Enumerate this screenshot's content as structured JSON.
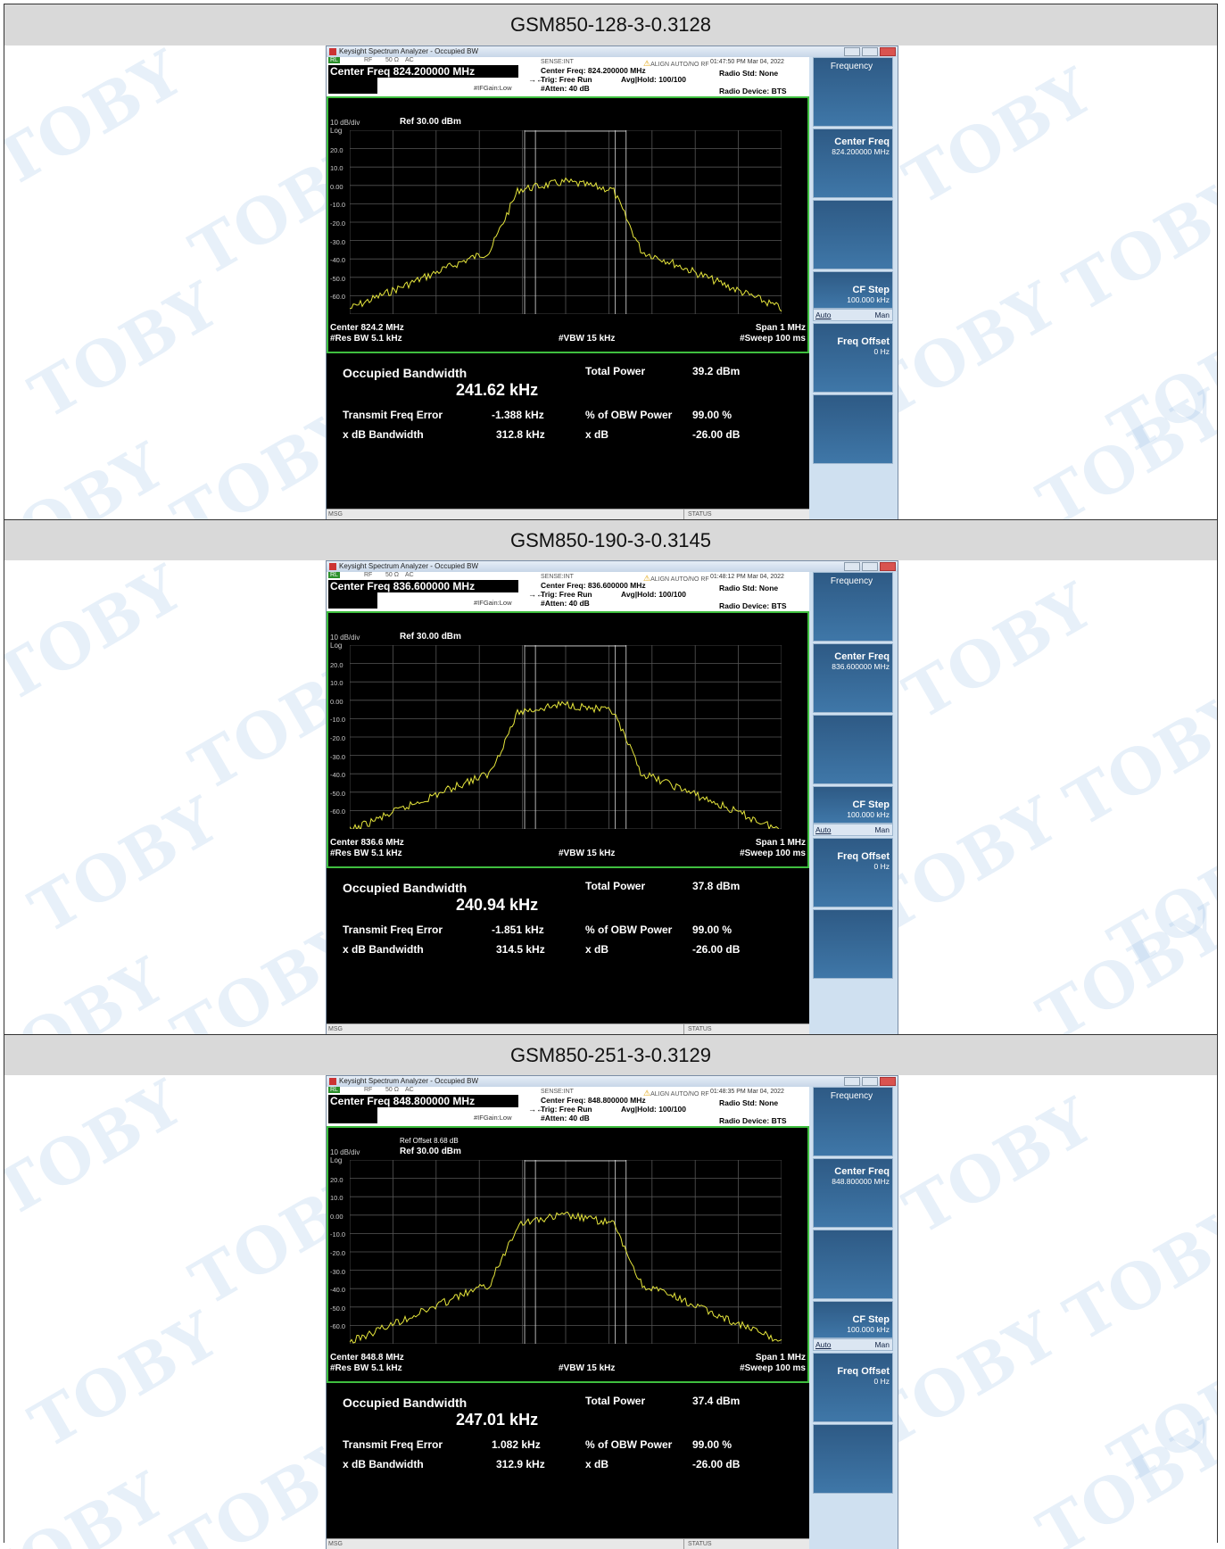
{
  "panels": [
    {
      "header": "GSM850-128-3-0.3128",
      "window_title": "Keysight Spectrum Analyzer - Occupied BW",
      "status_row": {
        "rl": "RL",
        "rf": "RF",
        "ohm": "50 Ω",
        "ac": "AC",
        "sense": "SENSE:INT",
        "align": "ALIGN AUTO/NO RF",
        "time": "01:47:50 PM Mar 04, 2022"
      },
      "center_freq_title": "Center Freq 824.200000 MHz",
      "center_freq_info": "Center Freq: 824.200000 MHz",
      "trig": "Trig: Free Run",
      "avg_hold": "Avg|Hold: 100/100",
      "atten": "#Atten: 40 dB",
      "ifgain": "#IFGain:Low",
      "radio_std": "Radio Std: None",
      "radio_device": "Radio Device: BTS",
      "ref_offset": "",
      "ref_level": "Ref 30.00 dBm",
      "scale": "10 dB/div",
      "log": "Log",
      "y_ticks": [
        "20.0",
        "10.0",
        "0.00",
        "-10.0",
        "-20.0",
        "-30.0",
        "-40.0",
        "-50.0",
        "-60.0"
      ],
      "center": "Center  824.2 MHz",
      "res_bw": "#Res BW  5.1 kHz",
      "vbw": "#VBW  15 kHz",
      "span": "Span 1 MHz",
      "sweep": "#Sweep  100 ms",
      "occupied_bw_label": "Occupied Bandwidth",
      "occupied_bw_value": "241.62 kHz",
      "total_power_label": "Total Power",
      "total_power_value": "39.2 dBm",
      "tx_freq_error_label": "Transmit Freq Error",
      "tx_freq_error_value": "-1.388 kHz",
      "obw_power_label": "% of OBW Power",
      "obw_power_value": "99.00 %",
      "xdb_bw_label": "x dB Bandwidth",
      "xdb_bw_value": "312.8 kHz",
      "xdb_label": "x dB",
      "xdb_value": "-26.00 dB",
      "msg": "MSG",
      "status": "STATUS",
      "menu": {
        "title": "Frequency",
        "center_freq": "Center Freq",
        "center_freq_val": "824.200000 MHz",
        "cf_step": "CF Step",
        "cf_step_val": "100.000 kHz",
        "auto": "Auto",
        "man": "Man",
        "freq_offset": "Freq Offset",
        "freq_offset_val": "0 Hz"
      },
      "trace_peak_y": 0.28
    },
    {
      "header": "GSM850-190-3-0.3145",
      "window_title": "Keysight Spectrum Analyzer - Occupied BW",
      "status_row": {
        "rl": "RL",
        "rf": "RF",
        "ohm": "50 Ω",
        "ac": "AC",
        "sense": "SENSE:INT",
        "align": "ALIGN AUTO/NO RF",
        "time": "01:48:12 PM Mar 04, 2022"
      },
      "center_freq_title": "Center Freq 836.600000 MHz",
      "center_freq_info": "Center Freq: 836.600000 MHz",
      "trig": "Trig: Free Run",
      "avg_hold": "Avg|Hold: 100/100",
      "atten": "#Atten: 40 dB",
      "ifgain": "#IFGain:Low",
      "radio_std": "Radio Std: None",
      "radio_device": "Radio Device: BTS",
      "ref_offset": "",
      "ref_level": "Ref 30.00 dBm",
      "scale": "10 dB/div",
      "log": "Log",
      "y_ticks": [
        "20.0",
        "10.0",
        "0.00",
        "-10.0",
        "-20.0",
        "-30.0",
        "-40.0",
        "-50.0",
        "-60.0"
      ],
      "center": "Center  836.6 MHz",
      "res_bw": "#Res BW  5.1 kHz",
      "vbw": "#VBW  15 kHz",
      "span": "Span 1 MHz",
      "sweep": "#Sweep  100 ms",
      "occupied_bw_label": "Occupied Bandwidth",
      "occupied_bw_value": "240.94 kHz",
      "total_power_label": "Total Power",
      "total_power_value": "37.8 dBm",
      "tx_freq_error_label": "Transmit Freq Error",
      "tx_freq_error_value": "-1.851 kHz",
      "obw_power_label": "% of OBW Power",
      "obw_power_value": "99.00 %",
      "xdb_bw_label": "x dB Bandwidth",
      "xdb_bw_value": "314.5 kHz",
      "xdb_label": "x dB",
      "xdb_value": "-26.00 dB",
      "msg": "MSG",
      "status": "STATUS",
      "menu": {
        "title": "Frequency",
        "center_freq": "Center Freq",
        "center_freq_val": "836.600000 MHz",
        "cf_step": "CF Step",
        "cf_step_val": "100.000 kHz",
        "auto": "Auto",
        "man": "Man",
        "freq_offset": "Freq Offset",
        "freq_offset_val": "0 Hz"
      },
      "trace_peak_y": 0.32
    },
    {
      "header": "GSM850-251-3-0.3129",
      "window_title": "Keysight Spectrum Analyzer - Occupied BW",
      "status_row": {
        "rl": "RL",
        "rf": "RF",
        "ohm": "50 Ω",
        "ac": "AC",
        "sense": "SENSE:INT",
        "align": "ALIGN AUTO/NO RF",
        "time": "01:48:35 PM Mar 04, 2022"
      },
      "center_freq_title": "Center Freq 848.800000 MHz",
      "center_freq_info": "Center Freq: 848.800000 MHz",
      "trig": "Trig: Free Run",
      "avg_hold": "Avg|Hold: 100/100",
      "atten": "#Atten: 40 dB",
      "ifgain": "#IFGain:Low",
      "radio_std": "Radio Std: None",
      "radio_device": "Radio Device: BTS",
      "ref_offset": "Ref Offset 8.68 dB",
      "ref_level": "Ref 30.00 dBm",
      "scale": "10 dB/div",
      "log": "Log",
      "y_ticks": [
        "20.0",
        "10.0",
        "0.00",
        "-10.0",
        "-20.0",
        "-30.0",
        "-40.0",
        "-50.0",
        "-60.0"
      ],
      "center": "Center  848.8 MHz",
      "res_bw": "#Res BW  5.1 kHz",
      "vbw": "#VBW  15 kHz",
      "span": "Span 1 MHz",
      "sweep": "#Sweep  100 ms",
      "occupied_bw_label": "Occupied Bandwidth",
      "occupied_bw_value": "247.01 kHz",
      "total_power_label": "Total Power",
      "total_power_value": "37.4 dBm",
      "tx_freq_error_label": "Transmit Freq Error",
      "tx_freq_error_value": "1.082 kHz",
      "obw_power_label": "% of OBW Power",
      "obw_power_value": "99.00 %",
      "xdb_bw_label": "x dB Bandwidth",
      "xdb_bw_value": "312.9 kHz",
      "xdb_label": "x dB",
      "xdb_value": "-26.00 dB",
      "msg": "MSG",
      "status": "STATUS",
      "menu": {
        "title": "Frequency",
        "center_freq": "Center Freq",
        "center_freq_val": "848.800000 MHz",
        "cf_step": "CF Step",
        "cf_step_val": "100.000 kHz",
        "auto": "Auto",
        "man": "Man",
        "freq_offset": "Freq Offset",
        "freq_offset_val": "0 Hz"
      },
      "trace_peak_y": 0.3
    }
  ],
  "watermark_text": "TOBY",
  "colors": {
    "trace": "#e6e63c",
    "graph_border": "#3fbf3f",
    "menu_key": "#2e5a85",
    "header_bg": "#d9d9d9"
  }
}
